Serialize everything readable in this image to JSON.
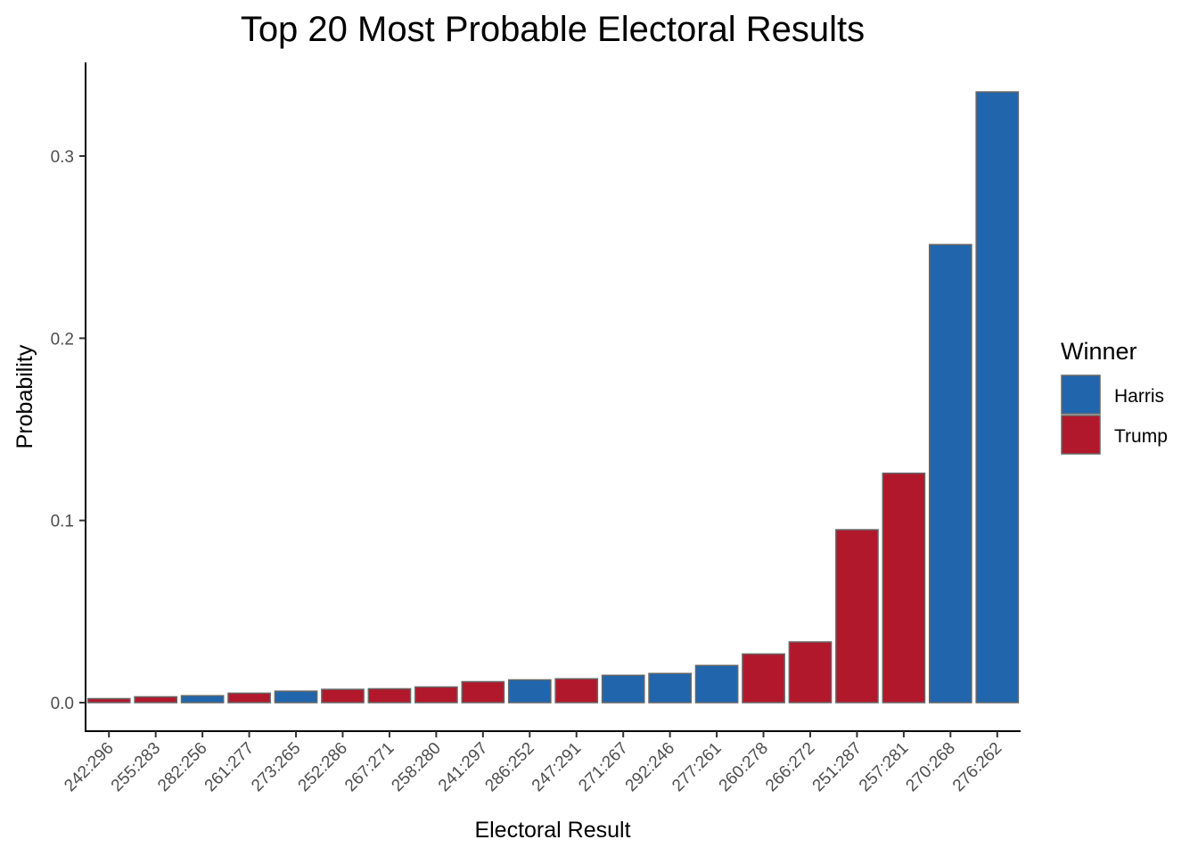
{
  "chart_data": {
    "type": "bar",
    "title": "Top 20 Most Probable Electoral Results",
    "xlabel": "Electoral Result",
    "ylabel": "Probability",
    "ylim": [
      -0.015,
      0.345
    ],
    "yticks": [
      0.0,
      0.1,
      0.2,
      0.3
    ],
    "ytick_labels": [
      "0.0",
      "0.1",
      "0.2",
      "0.3"
    ],
    "grid": false,
    "legend": {
      "title": "Winner",
      "position": "right",
      "entries": [
        {
          "label": "Harris",
          "color": "#2166ac"
        },
        {
          "label": "Trump",
          "color": "#b2182b"
        }
      ]
    },
    "categories": [
      "242:296",
      "255:283",
      "282:256",
      "261:277",
      "273:265",
      "252:286",
      "267:271",
      "258:280",
      "241:297",
      "286:252",
      "247:291",
      "271:267",
      "292:246",
      "277:261",
      "260:278",
      "266:272",
      "251:287",
      "257:281",
      "270:268",
      "276:262"
    ],
    "values": [
      0.0022,
      0.0032,
      0.0038,
      0.0052,
      0.0063,
      0.0073,
      0.0076,
      0.0086,
      0.0115,
      0.0125,
      0.0131,
      0.015,
      0.016,
      0.0204,
      0.0267,
      0.0333,
      0.0949,
      0.1259,
      0.2514,
      0.3352
    ],
    "winner": [
      "Trump",
      "Trump",
      "Harris",
      "Trump",
      "Harris",
      "Trump",
      "Trump",
      "Trump",
      "Trump",
      "Harris",
      "Trump",
      "Harris",
      "Harris",
      "Harris",
      "Trump",
      "Trump",
      "Trump",
      "Trump",
      "Harris",
      "Harris"
    ],
    "bar_outline_color": "#666666"
  }
}
